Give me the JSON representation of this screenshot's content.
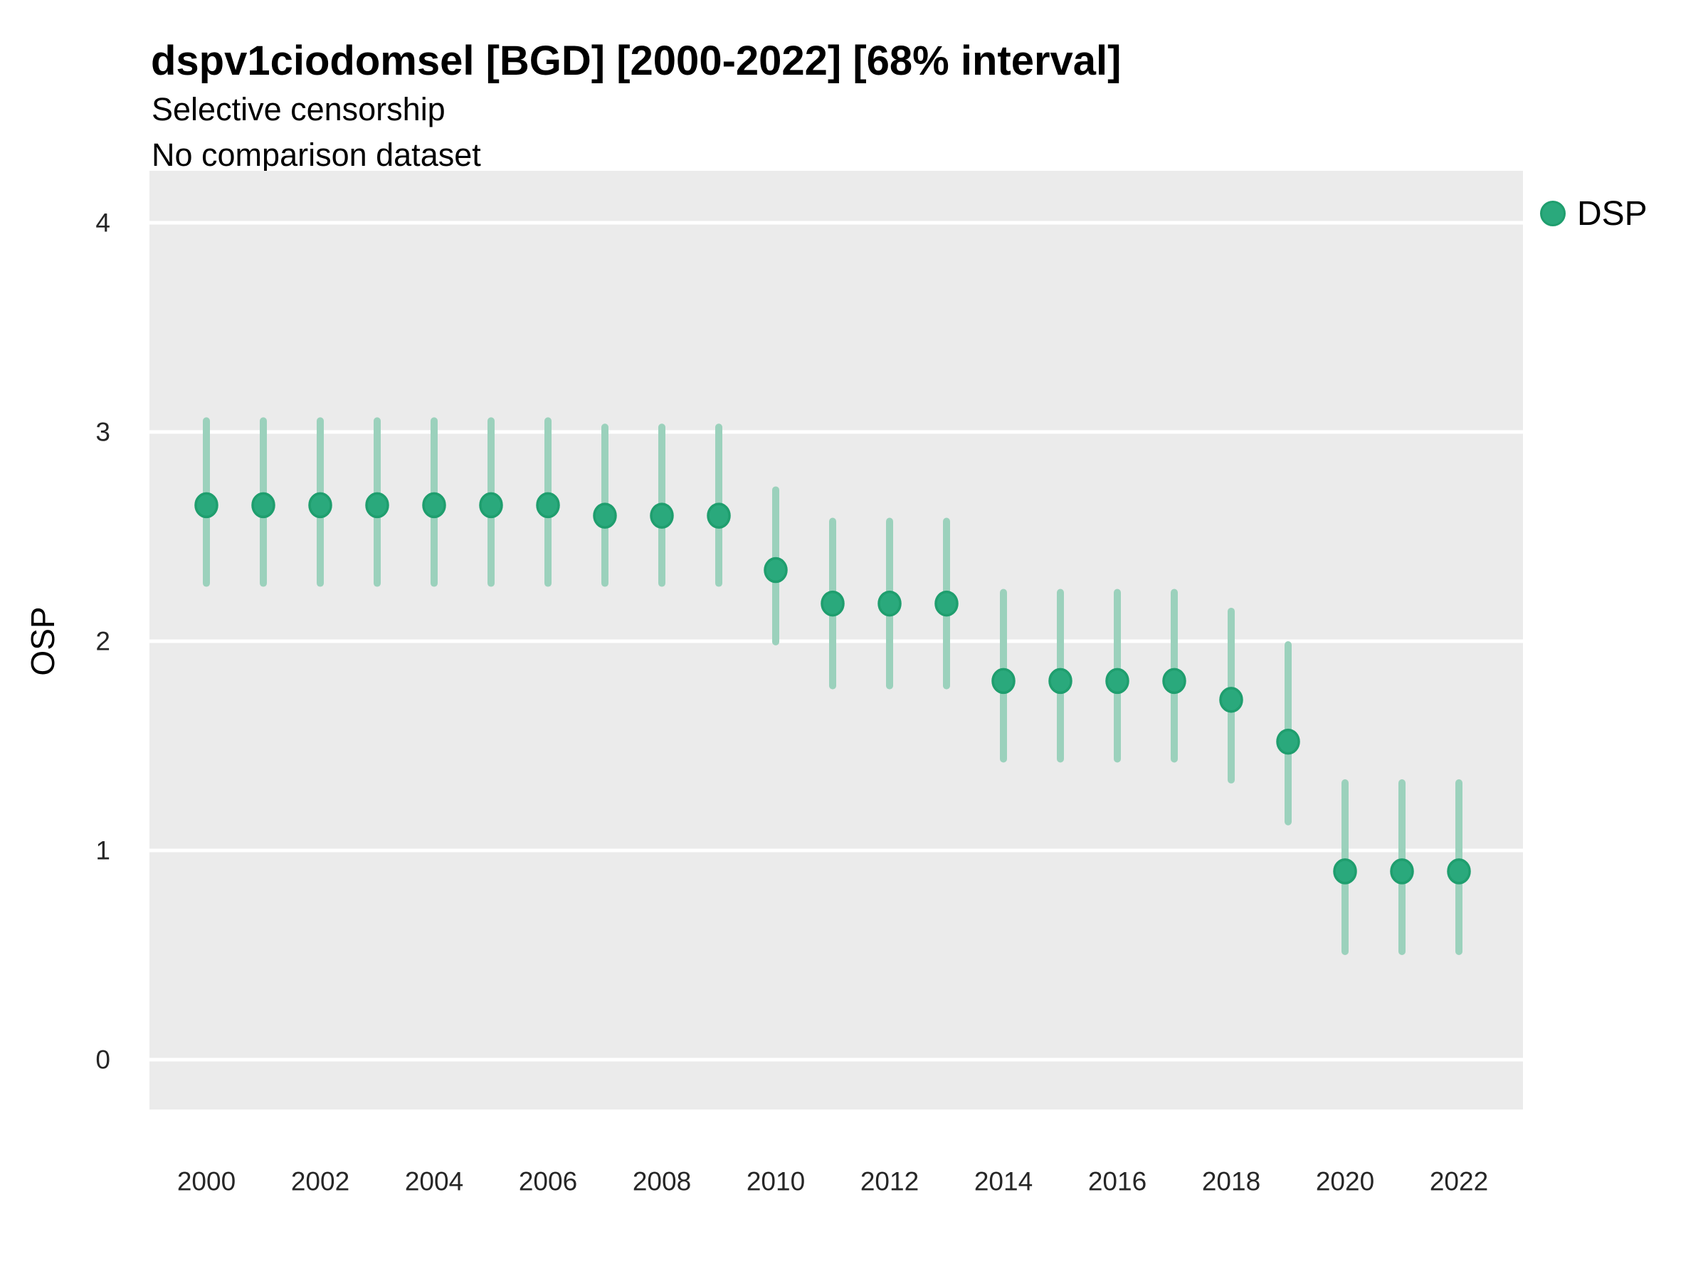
{
  "header": {
    "title": "dspv1ciodomsel [BGD] [2000-2022] [68% interval]",
    "subtitle_line1": "Selective censorship",
    "subtitle_line2": "No comparison dataset"
  },
  "legend": {
    "items": [
      {
        "label": "DSP",
        "fill": "#2aa97c",
        "border": "#1f9e6e"
      }
    ]
  },
  "axes": {
    "y_title": "OSP",
    "y_tick_labels": [
      "0",
      "1",
      "2",
      "3",
      "4"
    ],
    "x_tick_labels": [
      "2000",
      "2002",
      "2004",
      "2006",
      "2008",
      "2010",
      "2012",
      "2014",
      "2016",
      "2018",
      "2020",
      "2022"
    ]
  },
  "chart_data": {
    "type": "scatter",
    "title": "dspv1ciodomsel [BGD] [2000-2022] [68% interval]",
    "subtitle": [
      "Selective censorship",
      "No comparison dataset"
    ],
    "xlabel": "",
    "ylabel": "OSP",
    "interval": "68%",
    "legend_position": "right",
    "grid": "horizontal-major-white-on-gray, no vertical gridlines, no tick marks",
    "x": [
      2000,
      2001,
      2002,
      2003,
      2004,
      2005,
      2006,
      2007,
      2008,
      2009,
      2010,
      2011,
      2012,
      2013,
      2014,
      2015,
      2016,
      2017,
      2018,
      2019,
      2020,
      2021,
      2022
    ],
    "series": [
      {
        "name": "DSP",
        "values": [
          2.65,
          2.65,
          2.65,
          2.65,
          2.65,
          2.65,
          2.65,
          2.6,
          2.6,
          2.6,
          2.34,
          2.18,
          2.18,
          2.18,
          1.81,
          1.81,
          1.81,
          1.81,
          1.72,
          1.52,
          0.9,
          0.9,
          0.9
        ],
        "lower_68": [
          2.26,
          2.26,
          2.26,
          2.26,
          2.26,
          2.26,
          2.26,
          2.26,
          2.26,
          2.26,
          1.98,
          1.77,
          1.77,
          1.77,
          1.42,
          1.42,
          1.42,
          1.42,
          1.32,
          1.12,
          0.5,
          0.5,
          0.5
        ],
        "upper_68": [
          3.07,
          3.07,
          3.07,
          3.07,
          3.07,
          3.07,
          3.07,
          3.04,
          3.04,
          3.04,
          2.74,
          2.59,
          2.59,
          2.59,
          2.25,
          2.25,
          2.25,
          2.25,
          2.16,
          2.0,
          1.34,
          1.34,
          1.34
        ]
      }
    ],
    "y_ticks": [
      0,
      1,
      2,
      3,
      4
    ],
    "ylim": [
      -0.24,
      4.25
    ],
    "xlim": [
      1999,
      2023.1
    ],
    "colors": {
      "point_fill": "#2aa97c",
      "point_border": "#1f9e6e",
      "interval_bar": "#9bd1bc",
      "panel_background": "#ebebeb",
      "gridline": "#ffffff",
      "axis_text": "#262626",
      "title_text": "#000000"
    }
  }
}
